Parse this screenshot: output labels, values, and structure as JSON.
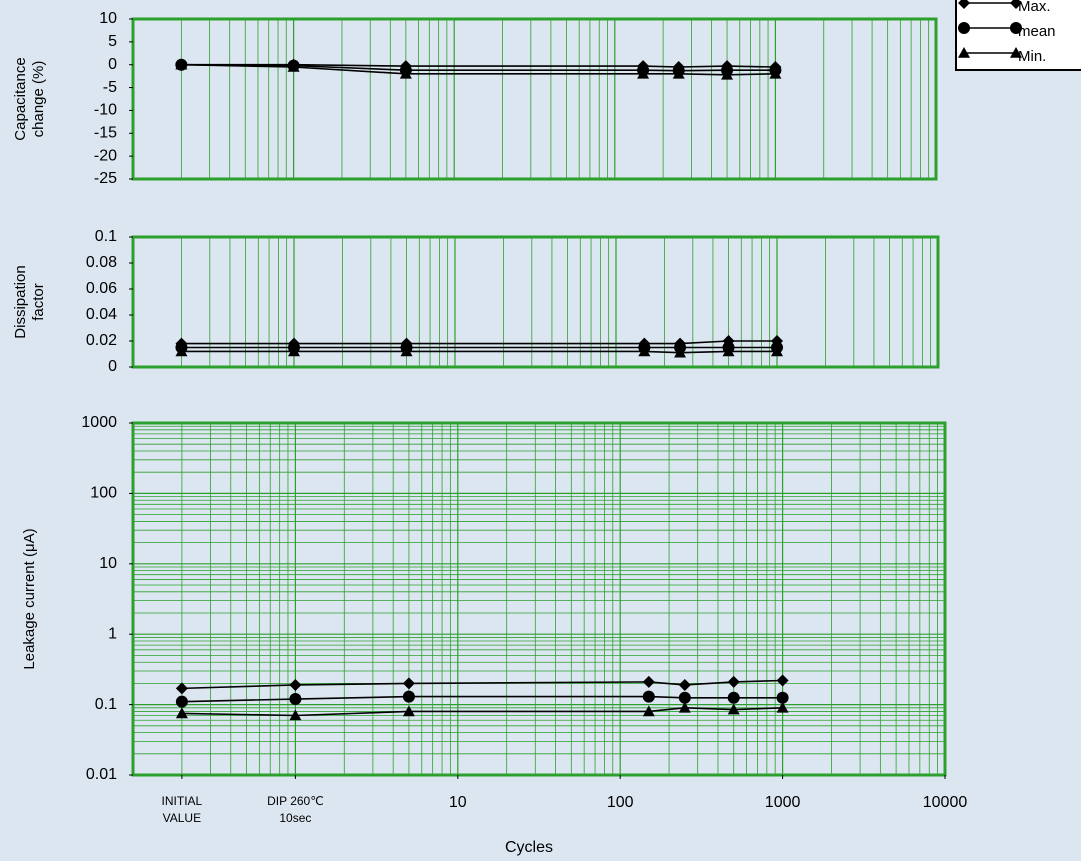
{
  "chart_data": [
    {
      "type": "line",
      "ylabel": "Capacitance change (%)",
      "xlog": true,
      "xlim": [
        0.1,
        10000
      ],
      "minor_grid": true,
      "ylim": [
        -25,
        10
      ],
      "yticks": [
        -25,
        -20,
        -15,
        -10,
        -5,
        0,
        5,
        10
      ],
      "legend": "upper right",
      "color": "#000000",
      "x": [
        0.2,
        1,
        5,
        150,
        250,
        500,
        1000
      ],
      "series": [
        {
          "name": "Max.",
          "marker": "diamond",
          "values": [
            0,
            0,
            -0.3,
            -0.3,
            -0.5,
            -0.3,
            -0.5
          ]
        },
        {
          "name": "mean",
          "marker": "circle",
          "values": [
            0,
            -0.2,
            -1.2,
            -1.2,
            -1.3,
            -1.2,
            -1.2
          ]
        },
        {
          "name": "Min.",
          "marker": "triangle",
          "values": [
            0,
            -0.5,
            -2,
            -2,
            -2,
            -2.2,
            -2
          ]
        }
      ]
    },
    {
      "type": "line",
      "ylabel": "Dissipation factor",
      "xlog": true,
      "xlim": [
        0.1,
        10000
      ],
      "minor_grid": true,
      "ylim": [
        0,
        0.1
      ],
      "yticks": [
        0,
        0.02,
        0.04,
        0.06,
        0.08,
        0.1
      ],
      "color": "#000000",
      "x": [
        0.2,
        1,
        5,
        150,
        250,
        500,
        1000
      ],
      "series": [
        {
          "marker": "diamond",
          "values": [
            0.018,
            0.018,
            0.018,
            0.018,
            0.018,
            0.02,
            0.02
          ]
        },
        {
          "marker": "circle",
          "values": [
            0.015,
            0.015,
            0.015,
            0.015,
            0.015,
            0.015,
            0.015
          ]
        },
        {
          "marker": "triangle",
          "values": [
            0.012,
            0.012,
            0.012,
            0.012,
            0.011,
            0.012,
            0.012
          ]
        }
      ]
    },
    {
      "type": "line",
      "ylabel": "Leakage current (μA)",
      "xlabel": "Cycles",
      "xlog": true,
      "ylog": true,
      "xlim": [
        0.1,
        10000
      ],
      "minor_grid": true,
      "ylim": [
        0.01,
        1000
      ],
      "yticks": [
        0.01,
        0.1,
        1,
        10,
        100,
        1000
      ],
      "color": "#000000",
      "xticks": [
        {
          "value": 0.2,
          "label": "INITIAL VALUE"
        },
        {
          "value": 1,
          "label": "DIP 260℃ 10sec"
        },
        10,
        100,
        1000,
        10000
      ],
      "x": [
        0.2,
        1,
        5,
        150,
        250,
        500,
        1000
      ],
      "series": [
        {
          "marker": "diamond",
          "values": [
            0.17,
            0.19,
            0.2,
            0.21,
            0.19,
            0.21,
            0.22
          ]
        },
        {
          "marker": "circle",
          "values": [
            0.11,
            0.12,
            0.13,
            0.13,
            0.125,
            0.125,
            0.125
          ]
        },
        {
          "marker": "triangle",
          "values": [
            0.075,
            0.07,
            0.08,
            0.08,
            0.09,
            0.085,
            0.09
          ]
        }
      ]
    }
  ]
}
